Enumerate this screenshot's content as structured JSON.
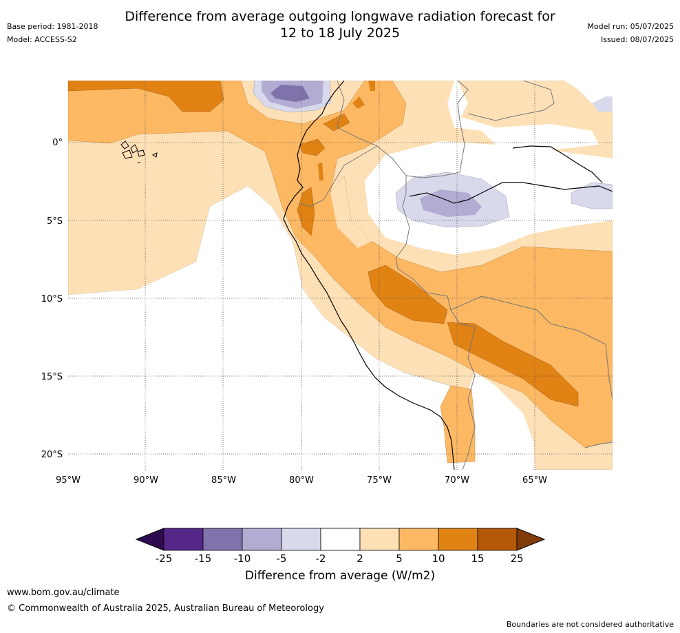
{
  "header": {
    "title_line1": "Difference from average outgoing longwave radiation forecast for",
    "title_line2": "12 to 18 July 2025",
    "base_period": "Base period: 1981-2018",
    "model": "Model: ACCESS-S2",
    "model_run": "Model run: 05/07/2025",
    "issued": "Issued: 08/07/2025"
  },
  "map": {
    "lon_labels": [
      "95°W",
      "90°W",
      "85°W",
      "80°W",
      "75°W",
      "70°W",
      "65°W"
    ],
    "lat_labels": [
      "0°",
      "5°S",
      "10°S",
      "15°S",
      "20°S"
    ],
    "grid": true
  },
  "colorbar": {
    "title": "Difference from average (W/m2)",
    "ticks": [
      "-25",
      "-15",
      "-10",
      "-5",
      "-2",
      "2",
      "5",
      "10",
      "15",
      "25"
    ],
    "colors": [
      "#2d0b4e",
      "#542788",
      "#8073ac",
      "#b2abd2",
      "#d8daeb",
      "#ffffff",
      "#fee0b6",
      "#fdb863",
      "#e08214",
      "#b35806",
      "#7f3b08"
    ]
  },
  "footer": {
    "website": "www.bom.gov.au/climate",
    "copyright": "© Commonwealth of Australia 2025, Australian Bureau of Meteorology",
    "disclaimer": "Boundaries are not considered authoritative"
  }
}
